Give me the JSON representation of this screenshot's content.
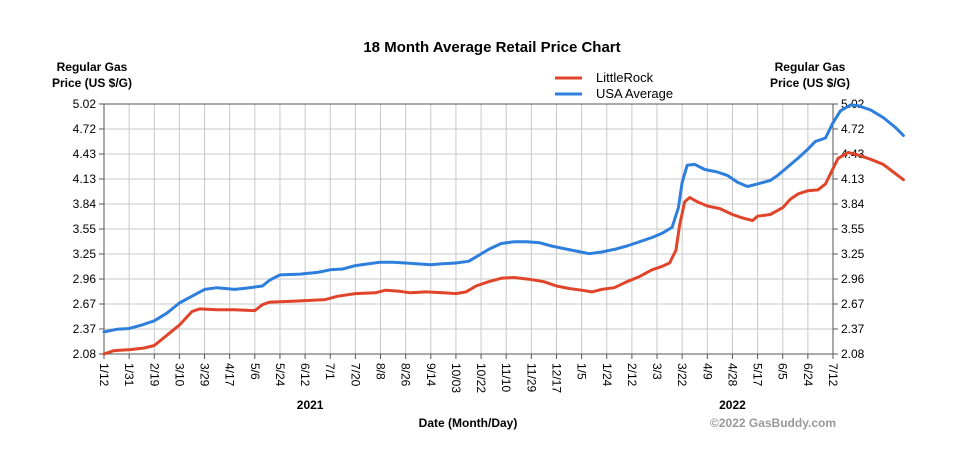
{
  "chart_data": {
    "type": "line",
    "title": "18 Month Average Retail Price Chart",
    "ylabel_left": [
      "Regular Gas",
      "Price (US $/G)"
    ],
    "ylabel_right": [
      "Regular Gas",
      "Price (US $/G)"
    ],
    "xlabel": "Date (Month/Day)",
    "watermark": "©2022 GasBuddy.com",
    "ylim": [
      2.08,
      5.02
    ],
    "yticks": [
      "5.02",
      "4.72",
      "4.43",
      "4.13",
      "3.84",
      "3.55",
      "3.25",
      "2.96",
      "2.67",
      "2.37",
      "2.08"
    ],
    "xticks": [
      "1/12",
      "1/31",
      "2/19",
      "3/10",
      "3/29",
      "4/17",
      "5/6",
      "5/24",
      "6/12",
      "7/1",
      "7/20",
      "8/8",
      "8/26",
      "9/14",
      "10/03",
      "10/22",
      "11/10",
      "11/29",
      "12/17",
      "1/5",
      "1/24",
      "2/12",
      "3/3",
      "3/22",
      "4/9",
      "4/28",
      "5/17",
      "6/5",
      "6/24",
      "7/12"
    ],
    "years": [
      {
        "label": "2021",
        "at_tick": 8.2
      },
      {
        "label": "2022",
        "at_tick": 25.0
      }
    ],
    "legend": "top-right",
    "grid": true,
    "series": [
      {
        "name": "LittleRock",
        "color": "#e0452b",
        "points": [
          [
            0,
            2.08
          ],
          [
            0.4,
            2.12
          ],
          [
            1.0,
            2.13
          ],
          [
            1.6,
            2.15
          ],
          [
            2.0,
            2.18
          ],
          [
            2.5,
            2.3
          ],
          [
            3.0,
            2.42
          ],
          [
            3.5,
            2.58
          ],
          [
            3.8,
            2.61
          ],
          [
            4.5,
            2.6
          ],
          [
            5.2,
            2.6
          ],
          [
            6.0,
            2.59
          ],
          [
            6.3,
            2.66
          ],
          [
            6.6,
            2.69
          ],
          [
            7.5,
            2.7
          ],
          [
            8.2,
            2.71
          ],
          [
            8.8,
            2.72
          ],
          [
            9.3,
            2.76
          ],
          [
            10.0,
            2.79
          ],
          [
            10.8,
            2.8
          ],
          [
            11.2,
            2.83
          ],
          [
            11.7,
            2.82
          ],
          [
            12.2,
            2.8
          ],
          [
            12.8,
            2.81
          ],
          [
            13.5,
            2.8
          ],
          [
            14.0,
            2.79
          ],
          [
            14.4,
            2.81
          ],
          [
            14.8,
            2.88
          ],
          [
            15.3,
            2.93
          ],
          [
            15.8,
            2.97
          ],
          [
            16.3,
            2.98
          ],
          [
            16.9,
            2.96
          ],
          [
            17.5,
            2.93
          ],
          [
            18.0,
            2.88
          ],
          [
            18.5,
            2.85
          ],
          [
            19.0,
            2.83
          ],
          [
            19.4,
            2.81
          ],
          [
            19.8,
            2.84
          ],
          [
            20.3,
            2.86
          ],
          [
            20.8,
            2.93
          ],
          [
            21.3,
            2.99
          ],
          [
            21.8,
            3.07
          ],
          [
            22.2,
            3.11
          ],
          [
            22.5,
            3.15
          ],
          [
            22.75,
            3.3
          ],
          [
            22.9,
            3.6
          ],
          [
            23.1,
            3.87
          ],
          [
            23.3,
            3.92
          ],
          [
            23.6,
            3.87
          ],
          [
            24.0,
            3.82
          ],
          [
            24.5,
            3.79
          ],
          [
            25.0,
            3.72
          ],
          [
            25.4,
            3.68
          ],
          [
            25.8,
            3.65
          ],
          [
            26.0,
            3.7
          ],
          [
            26.5,
            3.72
          ],
          [
            27.0,
            3.8
          ],
          [
            27.3,
            3.9
          ],
          [
            27.6,
            3.96
          ],
          [
            28.0,
            4.0
          ],
          [
            28.4,
            4.01
          ],
          [
            28.7,
            4.08
          ],
          [
            28.9,
            4.2
          ],
          [
            29.2,
            4.38
          ],
          [
            29.6,
            4.45
          ],
          [
            30.0,
            4.42
          ],
          [
            30.5,
            4.37
          ],
          [
            31.0,
            4.31
          ],
          [
            31.4,
            4.22
          ],
          [
            31.8,
            4.13
          ]
        ]
      },
      {
        "name": "USA Average",
        "color": "#2e7fdb",
        "points": [
          [
            0,
            2.34
          ],
          [
            0.5,
            2.37
          ],
          [
            1.0,
            2.38
          ],
          [
            1.5,
            2.42
          ],
          [
            2.0,
            2.47
          ],
          [
            2.5,
            2.56
          ],
          [
            3.0,
            2.68
          ],
          [
            3.5,
            2.76
          ],
          [
            4.0,
            2.84
          ],
          [
            4.5,
            2.86
          ],
          [
            5.2,
            2.84
          ],
          [
            5.8,
            2.86
          ],
          [
            6.3,
            2.88
          ],
          [
            6.6,
            2.95
          ],
          [
            7.0,
            3.01
          ],
          [
            7.8,
            3.02
          ],
          [
            8.5,
            3.04
          ],
          [
            9.0,
            3.07
          ],
          [
            9.5,
            3.08
          ],
          [
            10.0,
            3.12
          ],
          [
            10.5,
            3.14
          ],
          [
            11.0,
            3.16
          ],
          [
            11.5,
            3.16
          ],
          [
            12.0,
            3.15
          ],
          [
            12.5,
            3.14
          ],
          [
            13.0,
            3.13
          ],
          [
            13.4,
            3.14
          ],
          [
            14.0,
            3.15
          ],
          [
            14.5,
            3.17
          ],
          [
            14.9,
            3.24
          ],
          [
            15.3,
            3.31
          ],
          [
            15.8,
            3.38
          ],
          [
            16.3,
            3.4
          ],
          [
            16.8,
            3.4
          ],
          [
            17.3,
            3.39
          ],
          [
            17.8,
            3.35
          ],
          [
            18.3,
            3.32
          ],
          [
            18.8,
            3.29
          ],
          [
            19.3,
            3.26
          ],
          [
            19.8,
            3.28
          ],
          [
            20.3,
            3.31
          ],
          [
            20.8,
            3.35
          ],
          [
            21.3,
            3.4
          ],
          [
            21.8,
            3.45
          ],
          [
            22.2,
            3.5
          ],
          [
            22.6,
            3.57
          ],
          [
            22.85,
            3.8
          ],
          [
            23.0,
            4.1
          ],
          [
            23.2,
            4.3
          ],
          [
            23.5,
            4.31
          ],
          [
            23.9,
            4.25
          ],
          [
            24.4,
            4.22
          ],
          [
            24.8,
            4.18
          ],
          [
            25.2,
            4.1
          ],
          [
            25.6,
            4.05
          ],
          [
            26.0,
            4.08
          ],
          [
            26.5,
            4.12
          ],
          [
            26.8,
            4.18
          ],
          [
            27.2,
            4.28
          ],
          [
            27.6,
            4.38
          ],
          [
            28.0,
            4.49
          ],
          [
            28.3,
            4.58
          ],
          [
            28.7,
            4.62
          ],
          [
            29.0,
            4.8
          ],
          [
            29.3,
            4.94
          ],
          [
            29.7,
            5.01
          ],
          [
            30.0,
            5.0
          ],
          [
            30.5,
            4.95
          ],
          [
            31.0,
            4.86
          ],
          [
            31.5,
            4.74
          ],
          [
            31.8,
            4.65
          ]
        ]
      }
    ]
  }
}
